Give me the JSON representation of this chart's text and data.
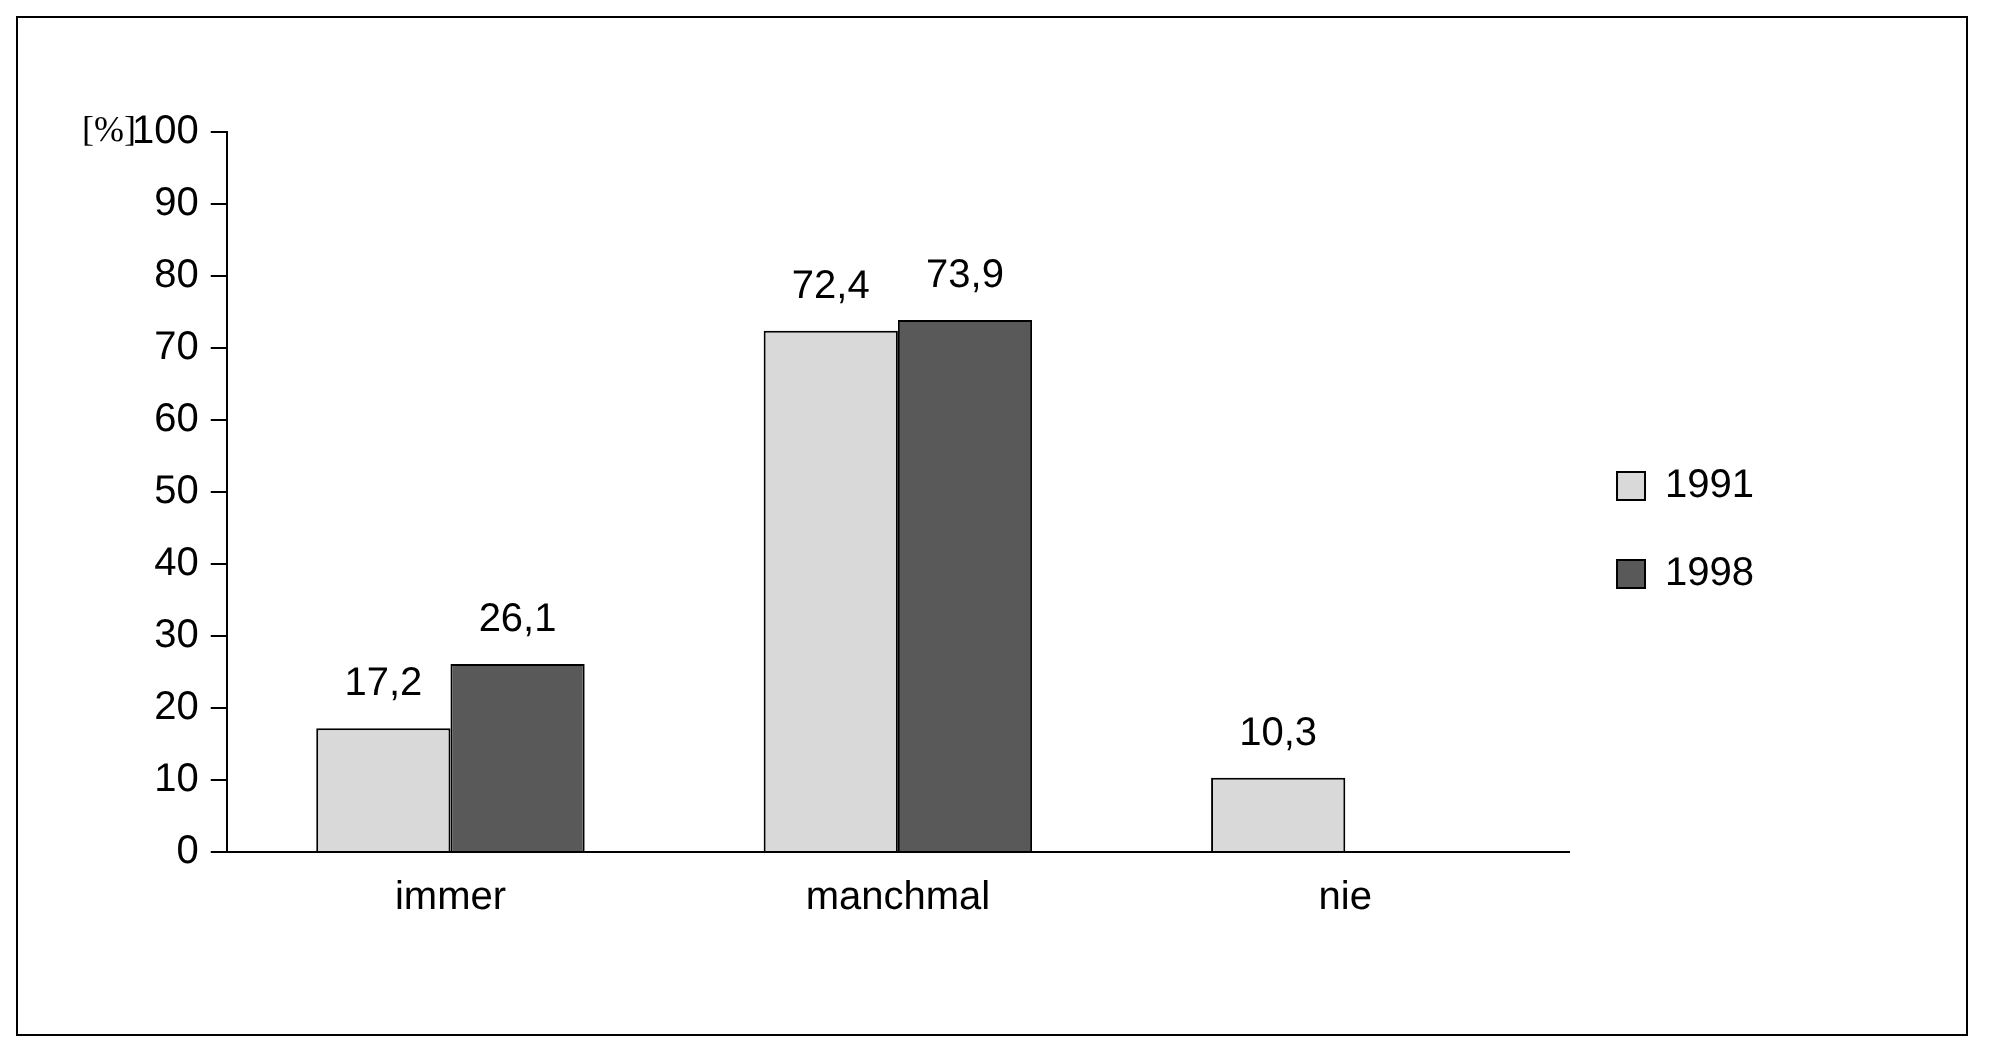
{
  "chart_data": {
    "type": "bar",
    "ylabel": "[%]",
    "categories": [
      "immer",
      "manchmal",
      "nie"
    ],
    "series": [
      {
        "name": "1991",
        "color": "#d9d9d9",
        "values": [
          17.2,
          72.4,
          10.3
        ],
        "value_labels": [
          "17,2",
          "72,4",
          "10,3"
        ]
      },
      {
        "name": "1998",
        "color": "#595959",
        "values": [
          26.1,
          73.9,
          null
        ],
        "value_labels": [
          "26,1",
          "73,9",
          null
        ]
      }
    ],
    "ylim": [
      0,
      100
    ],
    "yticks": [
      0,
      10,
      20,
      30,
      40,
      50,
      60,
      70,
      80,
      90,
      100
    ],
    "grid": false,
    "legend": "right"
  }
}
